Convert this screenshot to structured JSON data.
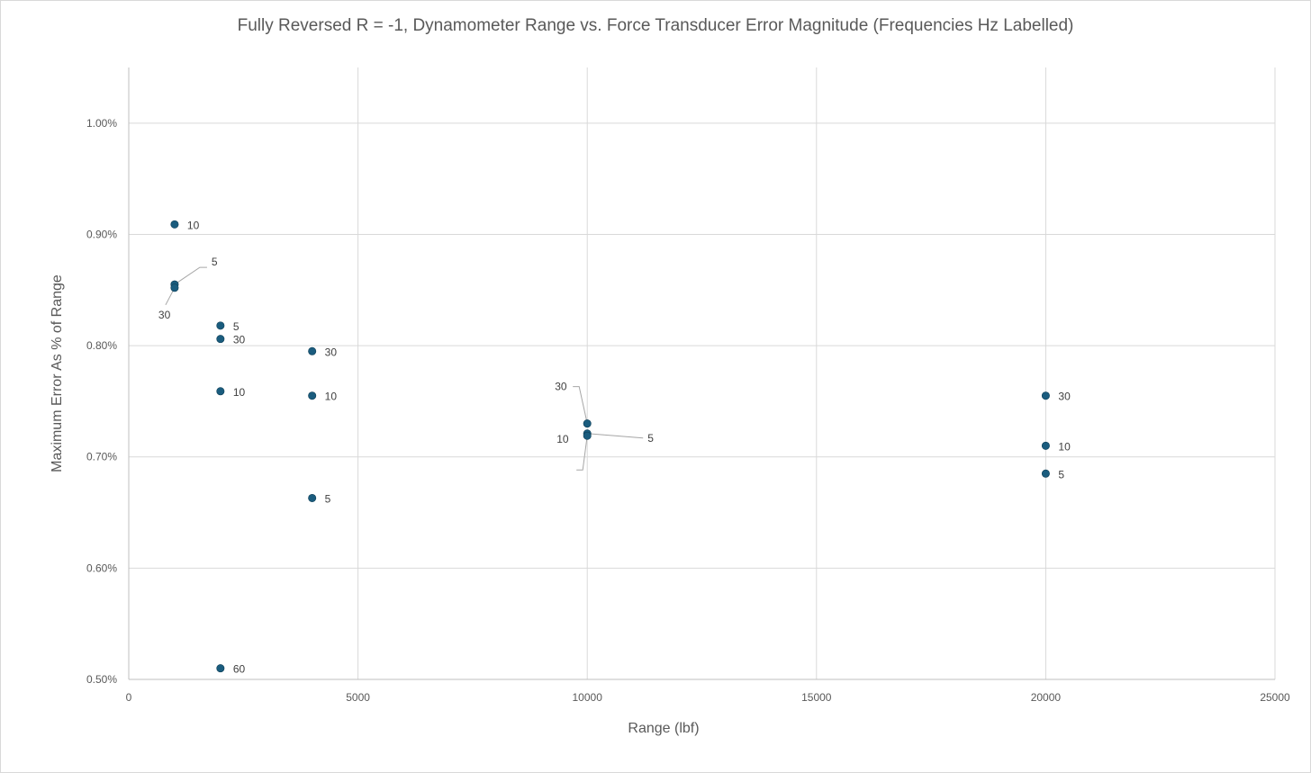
{
  "chart_data": {
    "type": "scatter",
    "title": "Fully Reversed R = -1, Dynamometer Range vs. Force Transducer Error Magnitude (Frequencies Hz Labelled)",
    "xlabel": "Range (lbf)",
    "ylabel": "Maximum Error As % of Range",
    "xlim": [
      0,
      25000
    ],
    "ylim": [
      0.005,
      0.0105
    ],
    "x_ticks": [
      0,
      5000,
      10000,
      15000,
      20000,
      25000
    ],
    "x_tick_labels": [
      "0",
      "5000",
      "10000",
      "15000",
      "20000",
      "25000"
    ],
    "y_ticks": [
      0.005,
      0.006,
      0.007,
      0.008,
      0.009,
      0.01
    ],
    "y_tick_labels": [
      "0.50%",
      "0.60%",
      "0.70%",
      "0.80%",
      "0.90%",
      "1.00%"
    ],
    "grid": true,
    "legend": "none",
    "marker_color": "#1a5c7e",
    "points": [
      {
        "x": 1000,
        "y": 0.00909,
        "label": "10"
      },
      {
        "x": 1000,
        "y": 0.00855,
        "label": "5"
      },
      {
        "x": 1000,
        "y": 0.00852,
        "label": "30"
      },
      {
        "x": 2000,
        "y": 0.00818,
        "label": "5"
      },
      {
        "x": 2000,
        "y": 0.00806,
        "label": "30"
      },
      {
        "x": 2000,
        "y": 0.00759,
        "label": "10"
      },
      {
        "x": 2000,
        "y": 0.0051,
        "label": "60"
      },
      {
        "x": 4000,
        "y": 0.00795,
        "label": "30"
      },
      {
        "x": 4000,
        "y": 0.00755,
        "label": "10"
      },
      {
        "x": 4000,
        "y": 0.00663,
        "label": "5"
      },
      {
        "x": 10000,
        "y": 0.0073,
        "label": "30"
      },
      {
        "x": 10000,
        "y": 0.00721,
        "label": "5"
      },
      {
        "x": 10000,
        "y": 0.00719,
        "label": "10"
      },
      {
        "x": 20000,
        "y": 0.00755,
        "label": "30"
      },
      {
        "x": 20000,
        "y": 0.0071,
        "label": "10"
      },
      {
        "x": 20000,
        "y": 0.00685,
        "label": "5"
      }
    ]
  }
}
